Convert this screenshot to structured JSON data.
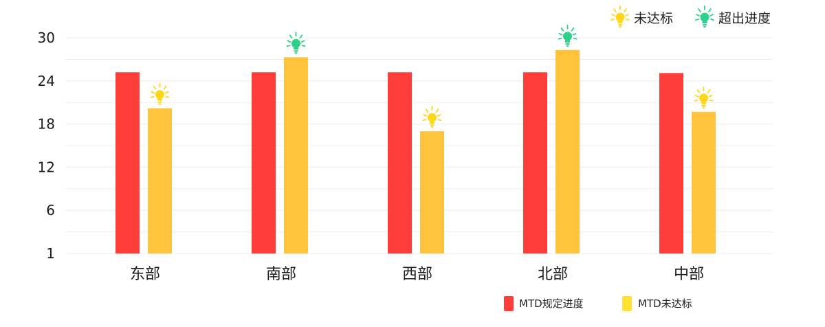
{
  "colors": {
    "series_target": "#FF3E3A",
    "series_actual": "#FFC43C",
    "bulb_below": "#FFD71A",
    "bulb_above": "#2ED08A",
    "grid": "#ECECEC",
    "legend_actual_swatch": "#FFE033"
  },
  "legend_top": [
    {
      "label": "未达标",
      "icon": "lightbulb-yellow-icon",
      "color": "#FFD71A"
    },
    {
      "label": "超出进度",
      "icon": "lightbulb-green-icon",
      "color": "#2ED08A"
    }
  ],
  "legend_bottom": [
    {
      "label": "MTD规定进度",
      "color": "#FF3E3A"
    },
    {
      "label": "MTD未达标",
      "color": "#FFE033"
    }
  ],
  "chart_data": {
    "type": "bar",
    "categories": [
      "东部",
      "南部",
      "西部",
      "北部",
      "中部"
    ],
    "series": [
      {
        "name": "MTD规定进度",
        "values": [
          25.2,
          25.2,
          25.2,
          25.2,
          25.1
        ]
      },
      {
        "name": "MTD未达标",
        "values": [
          20.2,
          27.3,
          17.0,
          28.3,
          19.7
        ]
      }
    ],
    "status_icons": [
      "未达标",
      "超出进度",
      "未达标",
      "超出进度",
      "未达标"
    ],
    "y_ticks": [
      1,
      6,
      12,
      18,
      24,
      30
    ],
    "ylim": [
      0,
      30
    ],
    "grid": true,
    "legend_placement": "top-right and bottom"
  }
}
